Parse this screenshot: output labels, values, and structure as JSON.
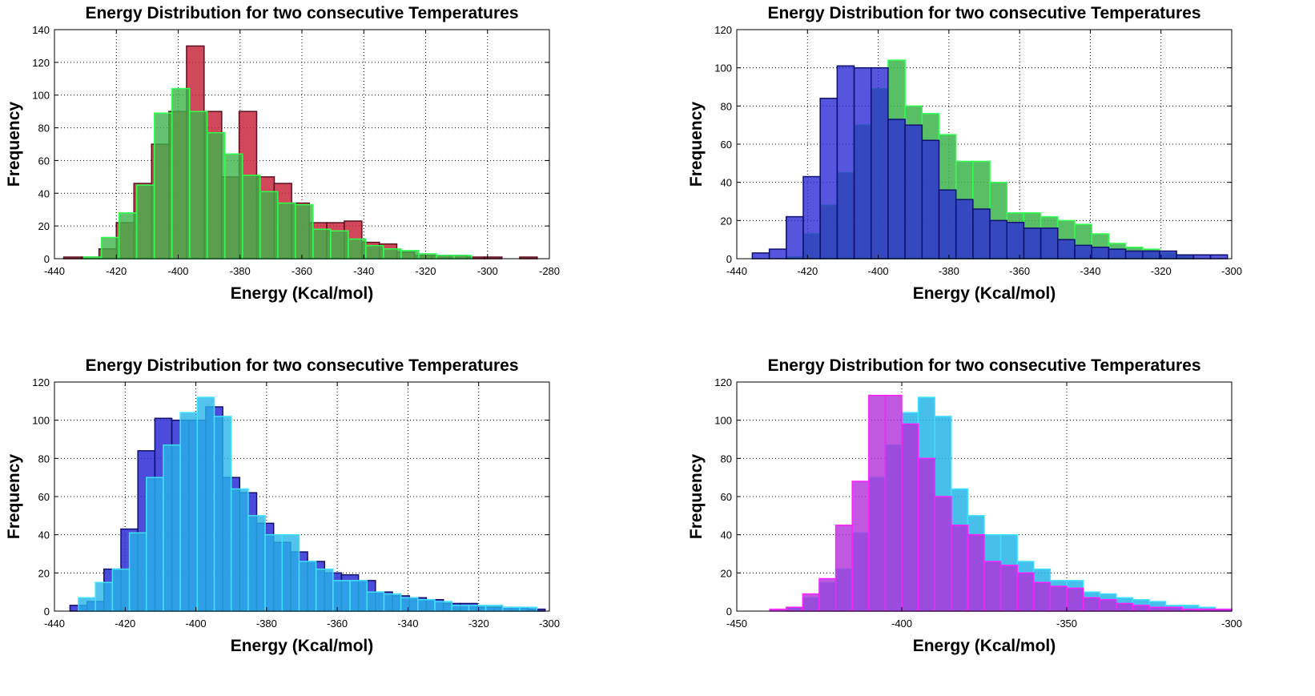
{
  "chart_data": [
    {
      "type": "histogram",
      "title": "Energy Distribution for two consecutive Temperatures",
      "xlabel": "Energy (Kcal/mol)",
      "ylabel": "Frequency",
      "xlim": [
        -440,
        -280
      ],
      "ylim": [
        0,
        140
      ],
      "xticks": [
        -440,
        -420,
        -400,
        -380,
        -360,
        -340,
        -320,
        -300,
        -280
      ],
      "yticks": [
        0,
        20,
        40,
        60,
        80,
        100,
        120,
        140
      ],
      "grid": true,
      "series": [
        {
          "name": "red",
          "color": "#c8283c",
          "edge": "#5a1020",
          "bin_width": 5.67,
          "bins": [
            [
              -437,
              1
            ],
            [
              -431.3,
              1
            ],
            [
              -425.6,
              6
            ],
            [
              -420,
              22
            ],
            [
              -414.3,
              46
            ],
            [
              -408.6,
              70
            ],
            [
              -403,
              90
            ],
            [
              -397.3,
              130
            ],
            [
              -391.6,
              90
            ],
            [
              -386,
              50
            ],
            [
              -380.3,
              90
            ],
            [
              -374.6,
              50
            ],
            [
              -369,
              46
            ],
            [
              -363.3,
              34
            ],
            [
              -357.6,
              22
            ],
            [
              -352,
              22
            ],
            [
              -346.3,
              23
            ],
            [
              -340.6,
              10
            ],
            [
              -335,
              9
            ],
            [
              -329.3,
              4
            ],
            [
              -323.6,
              2
            ],
            [
              -318,
              2
            ],
            [
              -312.3,
              2
            ],
            [
              -306.6,
              1
            ],
            [
              -301,
              1
            ],
            [
              -295.3,
              0
            ],
            [
              -289.6,
              1
            ]
          ]
        },
        {
          "name": "green",
          "color": "#3cb44b",
          "edge": "#30ff50",
          "bin_width": 5.67,
          "bins": [
            [
              -430.5,
              1
            ],
            [
              -424.8,
              13
            ],
            [
              -419.1,
              28
            ],
            [
              -413.4,
              45
            ],
            [
              -407.7,
              89
            ],
            [
              -402,
              104
            ],
            [
              -396.3,
              90
            ],
            [
              -390.6,
              77
            ],
            [
              -384.9,
              64
            ],
            [
              -379.2,
              51
            ],
            [
              -373.5,
              41
            ],
            [
              -367.8,
              34
            ],
            [
              -362.1,
              33
            ],
            [
              -356.4,
              18
            ],
            [
              -350.7,
              17
            ],
            [
              -345,
              12
            ],
            [
              -339.3,
              8
            ],
            [
              -333.6,
              6
            ],
            [
              -327.9,
              5
            ],
            [
              -322.2,
              3
            ],
            [
              -316.5,
              2
            ],
            [
              -310.8,
              2
            ]
          ]
        }
      ]
    },
    {
      "type": "histogram",
      "title": "Energy Distribution for two consecutive Temperatures",
      "xlabel": "Energy (Kcal/mol)",
      "ylabel": "Frequency",
      "xlim": [
        -440,
        -300
      ],
      "ylim": [
        0,
        120
      ],
      "xticks": [
        -440,
        -420,
        -400,
        -380,
        -360,
        -340,
        -320,
        -300
      ],
      "yticks": [
        0,
        20,
        40,
        60,
        80,
        100,
        120
      ],
      "grid": true,
      "series": [
        {
          "name": "green",
          "color": "#3cb44b",
          "edge": "#30ff50",
          "bin_width": 4.8,
          "bins": [
            [
              -426,
              1
            ],
            [
              -421.2,
              13
            ],
            [
              -416.4,
              28
            ],
            [
              -411.6,
              45
            ],
            [
              -406.8,
              70
            ],
            [
              -402,
              89
            ],
            [
              -397.2,
              104
            ],
            [
              -392.4,
              80
            ],
            [
              -387.6,
              76
            ],
            [
              -382.8,
              65
            ],
            [
              -378,
              51
            ],
            [
              -373.2,
              51
            ],
            [
              -368.4,
              40
            ],
            [
              -363.6,
              24
            ],
            [
              -358.8,
              24
            ],
            [
              -354,
              22
            ],
            [
              -349.2,
              20
            ],
            [
              -344.4,
              18
            ],
            [
              -339.6,
              13
            ],
            [
              -334.8,
              8
            ],
            [
              -330,
              6
            ],
            [
              -325.2,
              5
            ],
            [
              -320.4,
              3
            ],
            [
              -315.6,
              2
            ]
          ]
        },
        {
          "name": "blue",
          "color": "#2b2bd6",
          "edge": "#10106e",
          "bin_width": 4.8,
          "bins": [
            [
              -435.6,
              3
            ],
            [
              -430.8,
              5
            ],
            [
              -426,
              22
            ],
            [
              -421.2,
              43
            ],
            [
              -416.4,
              84
            ],
            [
              -411.6,
              101
            ],
            [
              -406.8,
              100
            ],
            [
              -402,
              100
            ],
            [
              -397.2,
              73
            ],
            [
              -392.4,
              70
            ],
            [
              -387.6,
              62
            ],
            [
              -382.8,
              36
            ],
            [
              -378,
              31
            ],
            [
              -373.2,
              26
            ],
            [
              -368.4,
              20
            ],
            [
              -363.6,
              19
            ],
            [
              -358.8,
              16
            ],
            [
              -354,
              16
            ],
            [
              -349.2,
              10
            ],
            [
              -344.4,
              7
            ],
            [
              -339.6,
              6
            ],
            [
              -334.8,
              5
            ],
            [
              -330,
              4
            ],
            [
              -325.2,
              4
            ],
            [
              -320.4,
              4
            ],
            [
              -315.6,
              2
            ],
            [
              -310.8,
              2
            ],
            [
              -306,
              2
            ]
          ]
        }
      ]
    },
    {
      "type": "histogram",
      "title": "Energy Distribution for two consecutive Temperatures",
      "xlabel": "Energy (Kcal/mol)",
      "ylabel": "Frequency",
      "xlim": [
        -440,
        -300
      ],
      "ylim": [
        0,
        120
      ],
      "xticks": [
        -440,
        -420,
        -400,
        -380,
        -360,
        -340,
        -320,
        -300
      ],
      "yticks": [
        0,
        20,
        40,
        60,
        80,
        100,
        120
      ],
      "grid": true,
      "series": [
        {
          "name": "blue",
          "color": "#2b2bd6",
          "edge": "#10106e",
          "bin_width": 4.8,
          "bins": [
            [
              -435.6,
              3
            ],
            [
              -430.8,
              5
            ],
            [
              -426,
              22
            ],
            [
              -421.2,
              43
            ],
            [
              -416.4,
              84
            ],
            [
              -411.6,
              101
            ],
            [
              -406.8,
              100
            ],
            [
              -402,
              100
            ],
            [
              -397.2,
              107
            ],
            [
              -392.4,
              70
            ],
            [
              -387.6,
              62
            ],
            [
              -382.8,
              46
            ],
            [
              -378,
              36
            ],
            [
              -373.2,
              31
            ],
            [
              -368.4,
              26
            ],
            [
              -363.6,
              20
            ],
            [
              -358.8,
              19
            ],
            [
              -354,
              16
            ],
            [
              -349.2,
              10
            ],
            [
              -344.4,
              8
            ],
            [
              -339.6,
              7
            ],
            [
              -334.8,
              6
            ],
            [
              -330,
              4
            ],
            [
              -325.2,
              4
            ],
            [
              -320.4,
              2
            ],
            [
              -315.6,
              2
            ],
            [
              -310.8,
              2
            ],
            [
              -306,
              1
            ]
          ]
        },
        {
          "name": "cyan",
          "color": "#27b4e8",
          "edge": "#40e0ff",
          "bin_width": 4.8,
          "bins": [
            [
              -433.2,
              7
            ],
            [
              -428.4,
              15
            ],
            [
              -423.6,
              22
            ],
            [
              -418.8,
              41
            ],
            [
              -414,
              70
            ],
            [
              -409.2,
              87
            ],
            [
              -404.4,
              104
            ],
            [
              -399.6,
              112
            ],
            [
              -394.8,
              102
            ],
            [
              -390,
              64
            ],
            [
              -385.2,
              50
            ],
            [
              -380.4,
              40
            ],
            [
              -375.6,
              40
            ],
            [
              -370.8,
              26
            ],
            [
              -366,
              22
            ],
            [
              -361.2,
              16
            ],
            [
              -356.4,
              16
            ],
            [
              -351.6,
              10
            ],
            [
              -346.8,
              9
            ],
            [
              -342,
              7
            ],
            [
              -337.2,
              6
            ],
            [
              -332.4,
              5
            ],
            [
              -327.6,
              3
            ],
            [
              -322.8,
              3
            ],
            [
              -318,
              3
            ],
            [
              -313.2,
              2
            ],
            [
              -308.4,
              2
            ]
          ]
        }
      ]
    },
    {
      "type": "histogram",
      "title": "Energy Distribution for two consecutive Temperatures",
      "xlabel": "Energy (Kcal/mol)",
      "ylabel": "Frequency",
      "xlim": [
        -450,
        -300
      ],
      "ylim": [
        0,
        120
      ],
      "xticks": [
        -450,
        -400,
        -350,
        -300
      ],
      "yticks": [
        0,
        20,
        40,
        60,
        80,
        100,
        120
      ],
      "grid": true,
      "series": [
        {
          "name": "cyan",
          "color": "#27b4e8",
          "edge": "#40e0ff",
          "bin_width": 5.0,
          "bins": [
            [
              -435,
              2
            ],
            [
              -430,
              7
            ],
            [
              -425,
              15
            ],
            [
              -420,
              22
            ],
            [
              -415,
              41
            ],
            [
              -410,
              70
            ],
            [
              -405,
              87
            ],
            [
              -400,
              104
            ],
            [
              -395,
              112
            ],
            [
              -390,
              102
            ],
            [
              -385,
              64
            ],
            [
              -380,
              50
            ],
            [
              -375,
              40
            ],
            [
              -370,
              40
            ],
            [
              -365,
              26
            ],
            [
              -360,
              22
            ],
            [
              -355,
              16
            ],
            [
              -350,
              16
            ],
            [
              -345,
              10
            ],
            [
              -340,
              9
            ],
            [
              -335,
              7
            ],
            [
              -330,
              6
            ],
            [
              -325,
              5
            ],
            [
              -320,
              3
            ],
            [
              -315,
              3
            ],
            [
              -310,
              2
            ],
            [
              -305,
              1
            ]
          ]
        },
        {
          "name": "magenta",
          "color": "#b030d8",
          "edge": "#ff20ff",
          "bin_width": 5.0,
          "bins": [
            [
              -440,
              1
            ],
            [
              -435,
              2
            ],
            [
              -430,
              9
            ],
            [
              -425,
              17
            ],
            [
              -420,
              45
            ],
            [
              -415,
              68
            ],
            [
              -410,
              113
            ],
            [
              -405,
              113
            ],
            [
              -400,
              98
            ],
            [
              -395,
              80
            ],
            [
              -390,
              60
            ],
            [
              -385,
              45
            ],
            [
              -380,
              40
            ],
            [
              -375,
              26
            ],
            [
              -370,
              24
            ],
            [
              -365,
              20
            ],
            [
              -360,
              15
            ],
            [
              -355,
              13
            ],
            [
              -350,
              12
            ],
            [
              -345,
              7
            ],
            [
              -340,
              6
            ],
            [
              -335,
              4
            ],
            [
              -330,
              3
            ],
            [
              -325,
              2
            ],
            [
              -320,
              2
            ],
            [
              -315,
              1
            ],
            [
              -310,
              1
            ],
            [
              -305,
              1
            ]
          ]
        }
      ]
    }
  ]
}
